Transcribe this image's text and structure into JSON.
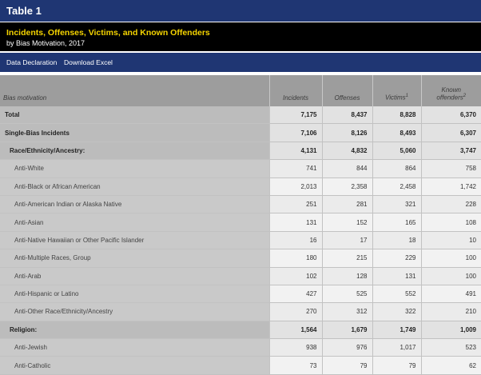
{
  "table_label": "Table 1",
  "title": "Incidents, Offenses, Victims, and Known Offenders",
  "subtitle": "by Bias Motivation, 2017",
  "actions": {
    "data_declaration": "Data Declaration",
    "download_excel": "Download Excel"
  },
  "columns": {
    "bias": "Bias motivation",
    "incidents": "Incidents",
    "offenses": "Offenses",
    "victims": "Victims",
    "victims_sup": "1",
    "offenders_line1": "Known",
    "offenders_line2": "offenders",
    "offenders_sup": "2"
  },
  "rows": [
    {
      "label": "Total",
      "incidents": "7,175",
      "offenses": "8,437",
      "victims": "8,828",
      "offenders": "6,370"
    },
    {
      "label": "Single-Bias Incidents",
      "incidents": "7,106",
      "offenses": "8,126",
      "victims": "8,493",
      "offenders": "6,307"
    },
    {
      "label": "Race/Ethnicity/Ancestry:",
      "incidents": "4,131",
      "offenses": "4,832",
      "victims": "5,060",
      "offenders": "3,747"
    },
    {
      "label": "Anti-White",
      "incidents": "741",
      "offenses": "844",
      "victims": "864",
      "offenders": "758"
    },
    {
      "label": "Anti-Black or African American",
      "incidents": "2,013",
      "offenses": "2,358",
      "victims": "2,458",
      "offenders": "1,742"
    },
    {
      "label": "Anti-American Indian or Alaska Native",
      "incidents": "251",
      "offenses": "281",
      "victims": "321",
      "offenders": "228"
    },
    {
      "label": "Anti-Asian",
      "incidents": "131",
      "offenses": "152",
      "victims": "165",
      "offenders": "108"
    },
    {
      "label": "Anti-Native Hawaiian or Other Pacific Islander",
      "incidents": "16",
      "offenses": "17",
      "victims": "18",
      "offenders": "10"
    },
    {
      "label": "Anti-Multiple Races, Group",
      "incidents": "180",
      "offenses": "215",
      "victims": "229",
      "offenders": "100"
    },
    {
      "label": "Anti-Arab",
      "incidents": "102",
      "offenses": "128",
      "victims": "131",
      "offenders": "100"
    },
    {
      "label": "Anti-Hispanic or Latino",
      "incidents": "427",
      "offenses": "525",
      "victims": "552",
      "offenders": "491"
    },
    {
      "label": "Anti-Other Race/Ethnicity/Ancestry",
      "incidents": "270",
      "offenses": "312",
      "victims": "322",
      "offenders": "210"
    },
    {
      "label": "Religion:",
      "incidents": "1,564",
      "offenses": "1,679",
      "victims": "1,749",
      "offenders": "1,009"
    },
    {
      "label": "Anti-Jewish",
      "incidents": "938",
      "offenses": "976",
      "victims": "1,017",
      "offenders": "523"
    },
    {
      "label": "Anti-Catholic",
      "incidents": "73",
      "offenses": "79",
      "victims": "79",
      "offenders": "62"
    }
  ]
}
